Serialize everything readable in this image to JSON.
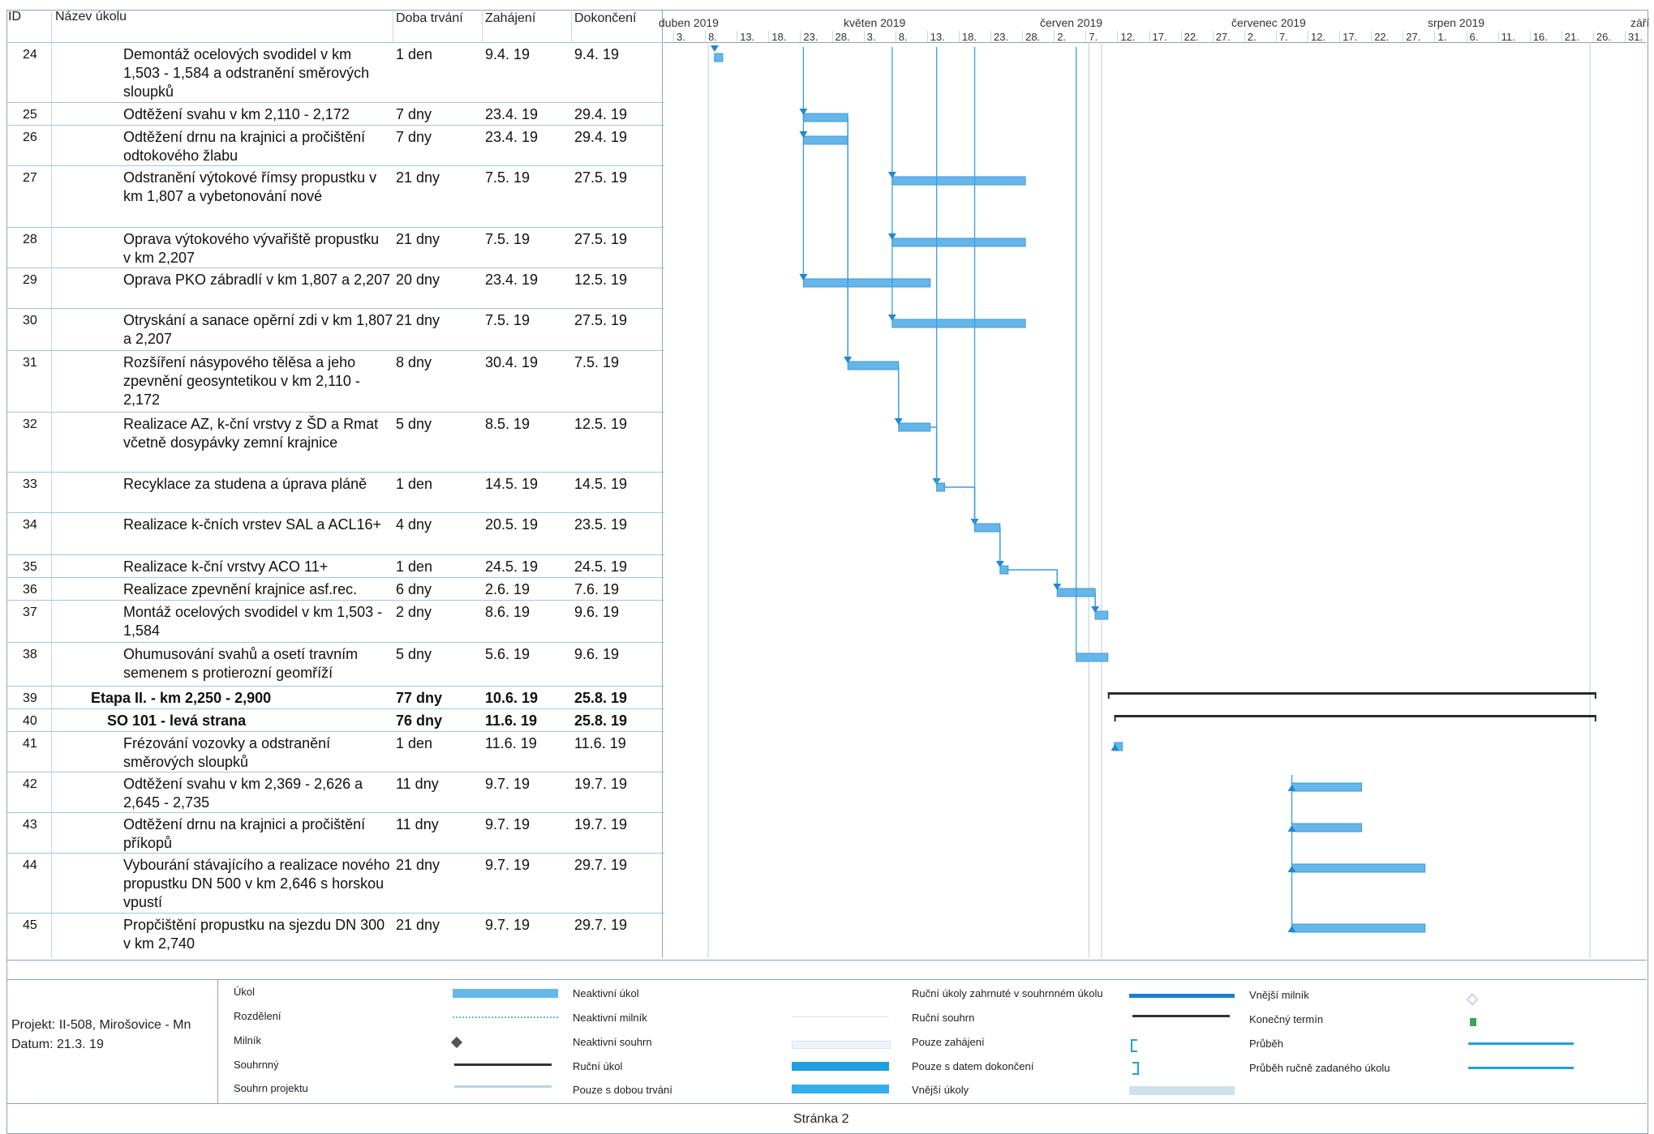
{
  "columns": {
    "id": "ID",
    "name": "Název úkolu",
    "duration": "Doba trvání",
    "start": "Zahájení",
    "finish": "Dokončení"
  },
  "months": [
    "duben 2019",
    "květen 2019",
    "červen 2019",
    "červenec 2019",
    "srpen 2019",
    "září"
  ],
  "days": [
    "3.",
    "8.",
    "13.",
    "18.",
    "23.",
    "28.",
    "3.",
    "8.",
    "13.",
    "18.",
    "23.",
    "28.",
    "2.",
    "7.",
    "12.",
    "17.",
    "22.",
    "27.",
    "2.",
    "7.",
    "12.",
    "17.",
    "22.",
    "27.",
    "1.",
    "6.",
    "11.",
    "16.",
    "21.",
    "26.",
    "31."
  ],
  "tasks": [
    {
      "id": "24",
      "lines": [
        "Demontáž ocelových svodidel v km",
        "1,503 - 1,584 a odstranění směrových",
        "sloupků"
      ],
      "duration": "1 den",
      "start": "9.4. 19",
      "finish": "9.4. 19"
    },
    {
      "id": "25",
      "lines": [
        "Odtěžení svahu v km 2,110 - 2,172"
      ],
      "duration": "7 dny",
      "start": "23.4. 19",
      "finish": "29.4. 19"
    },
    {
      "id": "26",
      "lines": [
        "Odtěžení drnu na krajnici a pročištění",
        "odtokového žlabu"
      ],
      "duration": "7 dny",
      "start": "23.4. 19",
      "finish": "29.4. 19"
    },
    {
      "id": "27",
      "lines": [
        "Odstranění výtokové římsy propustku v",
        "km 1,807 a  vybetonování nové"
      ],
      "duration": "21 dny",
      "start": "7.5. 19",
      "finish": "27.5. 19"
    },
    {
      "id": "28",
      "lines": [
        "Oprava výtokového vývařiště propustku",
        "v km 2,207"
      ],
      "duration": "21 dny",
      "start": "7.5. 19",
      "finish": "27.5. 19"
    },
    {
      "id": "29",
      "lines": [
        "Oprava PKO zábradlí v km 1,807 a 2,207"
      ],
      "duration": "20 dny",
      "start": "23.4. 19",
      "finish": "12.5. 19"
    },
    {
      "id": "30",
      "lines": [
        "Otryskání a sanace opěrní zdi v km 1,807",
        "a 2,207"
      ],
      "duration": "21 dny",
      "start": "7.5. 19",
      "finish": "27.5. 19"
    },
    {
      "id": "31",
      "lines": [
        "Rozšíření násypového tělěsa a jeho",
        "zpevnění geosyntetikou v km 2,110 -",
        "2,172"
      ],
      "duration": "8 dny",
      "start": "30.4. 19",
      "finish": "7.5. 19"
    },
    {
      "id": "32",
      "lines": [
        "Realizace AZ, k-ční vrstvy z ŠD a  Rmat",
        "včetně dosypávky zemní krajnice"
      ],
      "duration": "5 dny",
      "start": "8.5. 19",
      "finish": "12.5. 19"
    },
    {
      "id": "33",
      "lines": [
        "Recyklace za studena a úprava pláně"
      ],
      "duration": "1 den",
      "start": "14.5. 19",
      "finish": "14.5. 19"
    },
    {
      "id": "34",
      "lines": [
        "Realizace k-čních vrstev SAL a ACL16+"
      ],
      "duration": "4 dny",
      "start": "20.5. 19",
      "finish": "23.5. 19"
    },
    {
      "id": "35",
      "lines": [
        "Realizace k-ční vrstvy ACO 11+"
      ],
      "duration": "1 den",
      "start": "24.5. 19",
      "finish": "24.5. 19"
    },
    {
      "id": "36",
      "lines": [
        "Realizace zpevnění krajnice asf.rec."
      ],
      "duration": "6 dny",
      "start": "2.6. 19",
      "finish": "7.6. 19"
    },
    {
      "id": "37",
      "lines": [
        "Montáž ocelových svodidel v km 1,503 -",
        "1,584"
      ],
      "duration": "2 dny",
      "start": "8.6. 19",
      "finish": "9.6. 19"
    },
    {
      "id": "38",
      "lines": [
        "Ohumusování svahů a osetí travním",
        "semenem s protierozní geomříží"
      ],
      "duration": "5 dny",
      "start": "5.6. 19",
      "finish": "9.6. 19"
    },
    {
      "id": "39",
      "lines": [
        "Etapa II. - km 2,250 - 2,900"
      ],
      "duration": "77 dny",
      "start": "10.6. 19",
      "finish": "25.8. 19",
      "bold": true
    },
    {
      "id": "40",
      "lines": [
        "SO 101 - levá strana"
      ],
      "duration": "76 dny",
      "start": "11.6. 19",
      "finish": "25.8. 19",
      "bold": true
    },
    {
      "id": "41",
      "lines": [
        "Frézování vozovky a odstranění",
        "směrových sloupků"
      ],
      "duration": "1 den",
      "start": "11.6. 19",
      "finish": "11.6. 19"
    },
    {
      "id": "42",
      "lines": [
        "Odtěžení svahu v km 2,369 - 2,626 a",
        "2,645 - 2,735"
      ],
      "duration": "11 dny",
      "start": "9.7. 19",
      "finish": "19.7. 19"
    },
    {
      "id": "43",
      "lines": [
        "Odtěžení drnu na krajnici a pročištění",
        "příkopů"
      ],
      "duration": "11 dny",
      "start": "9.7. 19",
      "finish": "19.7. 19"
    },
    {
      "id": "44",
      "lines": [
        "Vybourání stávajícího a realizace nového",
        "propustku DN 500 v km 2,646 s horskou",
        "vpustí"
      ],
      "duration": "21 dny",
      "start": "9.7. 19",
      "finish": "29.7. 19"
    },
    {
      "id": "45",
      "lines": [
        "Propčištění propustku na sjezdu DN 300",
        "v km 2,740"
      ],
      "duration": "21 dny",
      "start": "9.7. 19",
      "finish": "29.7. 19"
    }
  ],
  "legend": {
    "project": "Projekt: II-508, Mirošovice - Mn",
    "date": "Datum: 21.3. 19",
    "col1": [
      "Úkol",
      "Rozdělení",
      "Milník",
      "Souhrnný",
      "Souhrn projektu"
    ],
    "col2": [
      "Neaktivní úkol",
      "Neaktivní milník",
      "Neaktivní souhrn",
      "Ruční úkol",
      "Pouze s dobou trvání"
    ],
    "col3": [
      "Ruční úkoly zahrnuté v souhrnném úkolu",
      "Ruční souhrn",
      "Pouze zahájení",
      "Pouze s datem dokončení",
      "Vnější úkoly"
    ],
    "col4": [
      "Vnější milník",
      "Konečný termín",
      "Průběh",
      "Průběh ručně zadaného úkolu"
    ]
  },
  "footer": "Stránka 2"
}
